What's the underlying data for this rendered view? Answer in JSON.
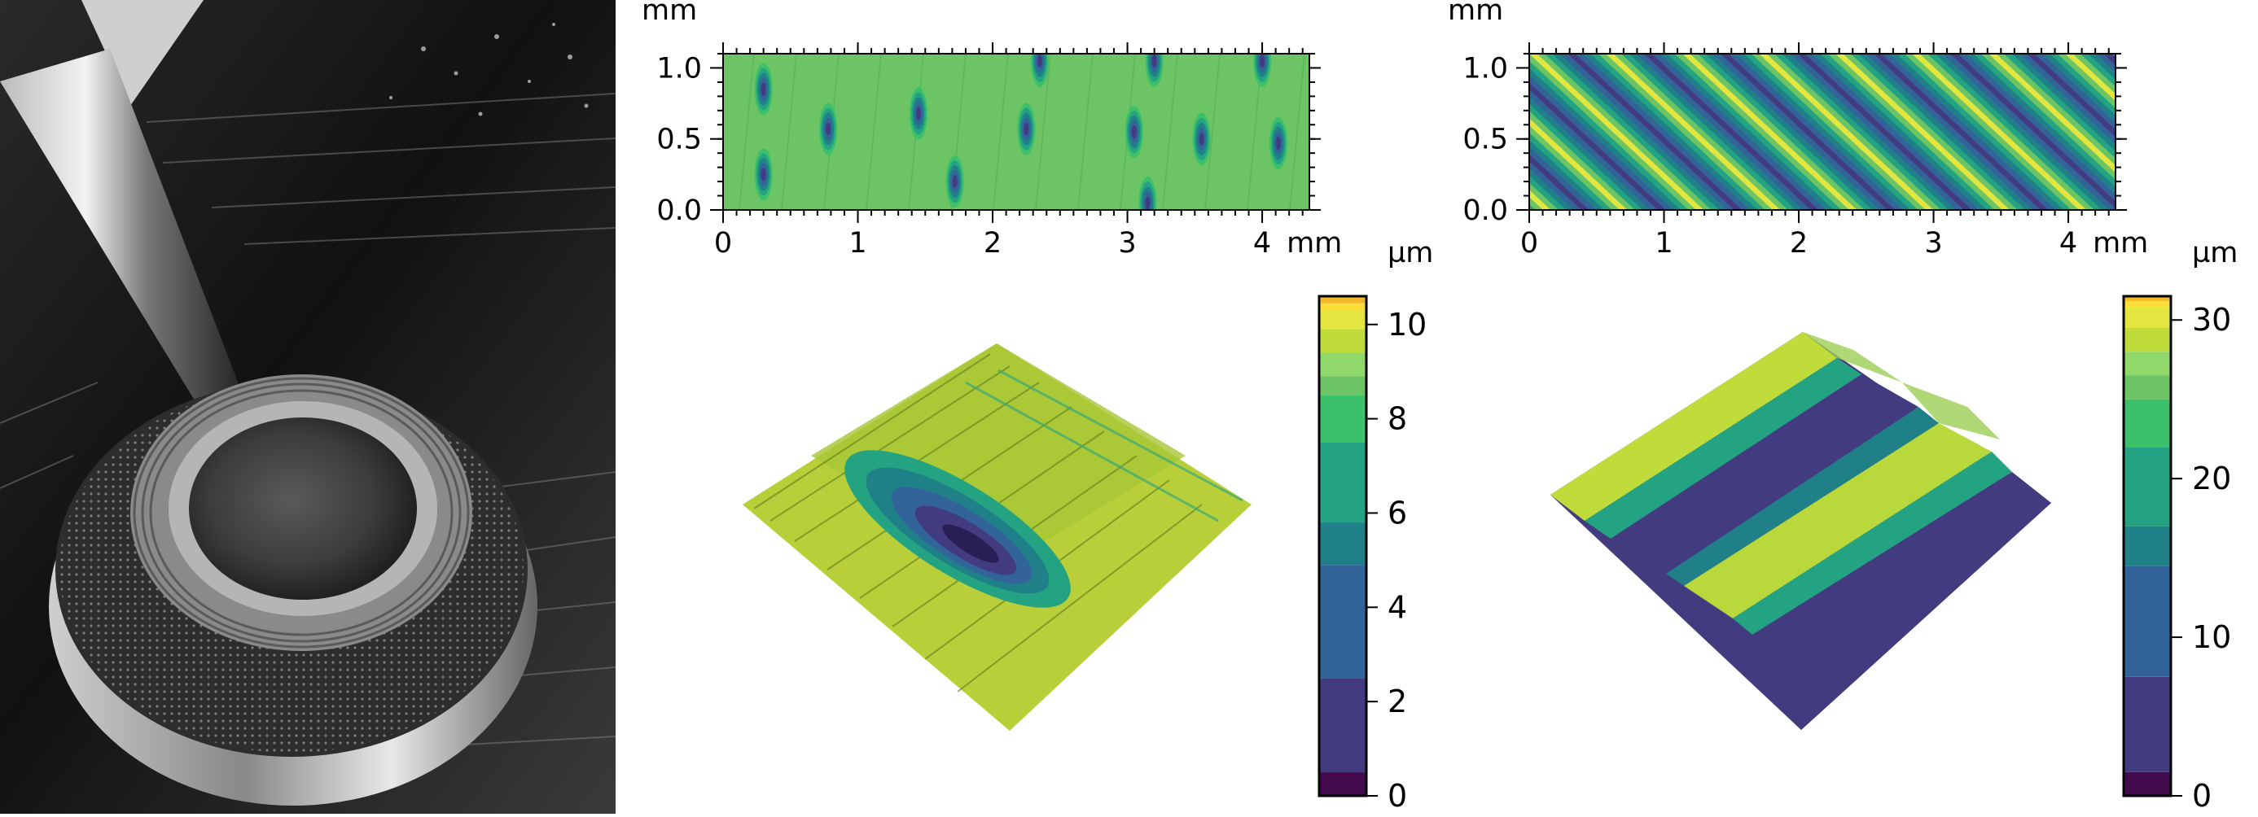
{
  "chart_data": [
    {
      "type": "heatmap",
      "panel": "top-left map",
      "x_unit": "mm",
      "y_unit": "mm",
      "xlim": [
        0,
        4.35
      ],
      "ylim": [
        0,
        1.1
      ],
      "x_ticks": [
        "0",
        "1",
        "2",
        "3",
        "4"
      ],
      "x_unit_label": "mm",
      "y_ticks": [
        "0.0",
        "0.5",
        "1.0"
      ],
      "y_unit_label": "mm",
      "surface": "flat surface ~8 µm with elliptical dimples ~1 µm deep",
      "dimples": [
        {
          "x": 0.3,
          "y": 0.85
        },
        {
          "x": 0.3,
          "y": 0.25
        },
        {
          "x": 0.78,
          "y": 0.57
        },
        {
          "x": 1.45,
          "y": 0.68
        },
        {
          "x": 1.72,
          "y": 0.2
        },
        {
          "x": 2.25,
          "y": 0.57
        },
        {
          "x": 2.35,
          "y": 1.05
        },
        {
          "x": 3.05,
          "y": 0.55
        },
        {
          "x": 3.15,
          "y": 0.05
        },
        {
          "x": 3.2,
          "y": 1.05
        },
        {
          "x": 3.55,
          "y": 0.5
        },
        {
          "x": 4.12,
          "y": 0.47
        },
        {
          "x": 4.0,
          "y": 1.05
        }
      ]
    },
    {
      "type": "heatmap",
      "panel": "top-right map",
      "x_unit": "mm",
      "y_unit": "mm",
      "xlim": [
        0,
        4.35
      ],
      "ylim": [
        0,
        1.1
      ],
      "x_ticks": [
        "0",
        "1",
        "2",
        "3",
        "4"
      ],
      "x_unit_label": "mm",
      "y_ticks": [
        "0.0",
        "0.5",
        "1.0"
      ],
      "y_unit_label": "mm",
      "surface": "diagonal sinusoidal grooves",
      "stripe_period_mm": 0.34,
      "amplitude_um": [
        0,
        30
      ]
    },
    {
      "type": "colorbar",
      "panel": "left colorbar",
      "unit_label": "µm",
      "ticks": [
        "0",
        "2",
        "4",
        "6",
        "8",
        "10"
      ],
      "range": [
        0,
        10.6
      ]
    },
    {
      "type": "colorbar",
      "panel": "right colorbar",
      "unit_label": "µm",
      "ticks": [
        "0",
        "10",
        "20",
        "30"
      ],
      "range": [
        0,
        31.5
      ]
    }
  ],
  "palette": [
    "#430a4e",
    "#433b80",
    "#32649a",
    "#1f8088",
    "#24a382",
    "#3cc06a",
    "#6dc465",
    "#90d86a",
    "#bfdc3a",
    "#e3e63e",
    "#fbde3a",
    "#f3b829"
  ],
  "colorbar_left_bounds": [
    0,
    0.5,
    2.5,
    4.9,
    5.8,
    7.5,
    8.5,
    8.9,
    9.4,
    9.9,
    10.3,
    10.45,
    10.6
  ],
  "colorbar_right_bounds": [
    0,
    1.5,
    7.5,
    14.5,
    17,
    22,
    25,
    26.5,
    28,
    29.5,
    30.8,
    31.2,
    31.5
  ]
}
